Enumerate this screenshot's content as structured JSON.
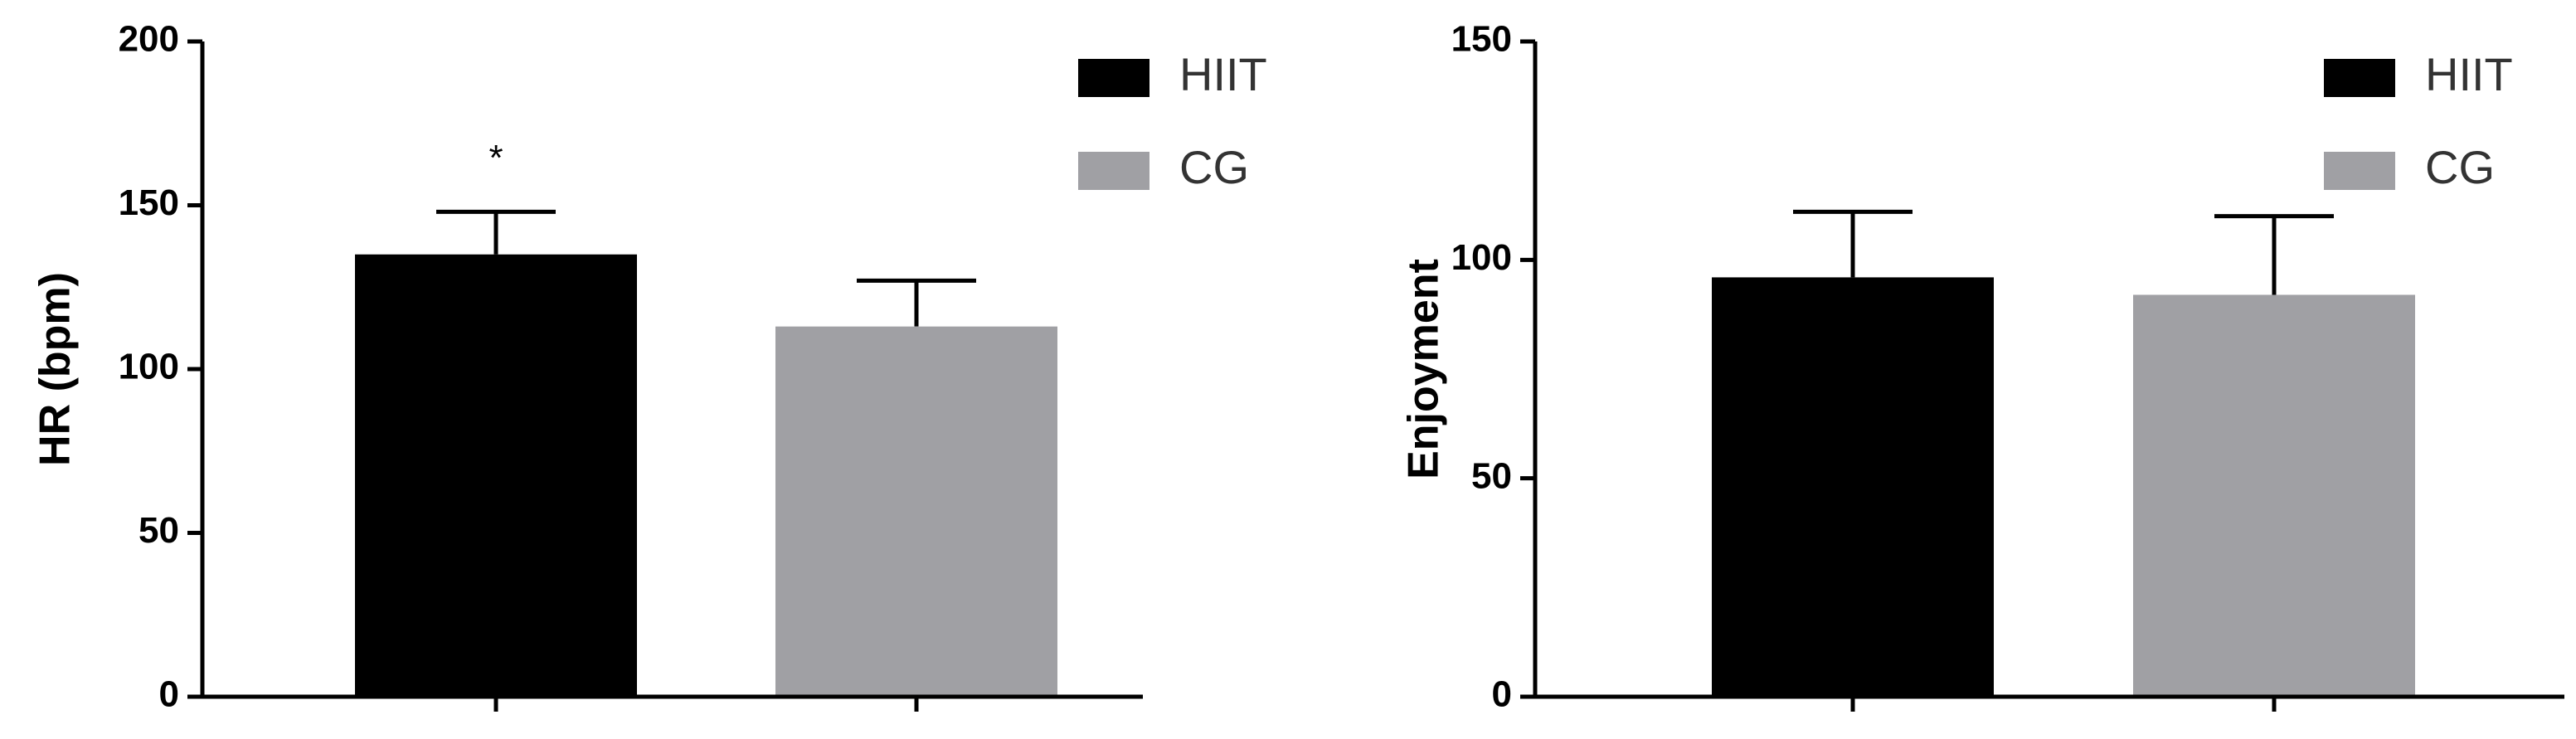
{
  "chart_data": [
    {
      "type": "bar",
      "y_label": "HR (bpm)",
      "categories": [
        null,
        null
      ],
      "series": [
        {
          "name": "HIIT",
          "color": "#000000",
          "values": [
            135,
            null
          ],
          "errors": [
            13,
            null
          ]
        },
        {
          "name": "CG",
          "color": "#a0a0a4",
          "values": [
            null,
            113
          ],
          "errors": [
            null,
            14
          ]
        }
      ],
      "annotation": "*",
      "ylim": [
        0,
        200
      ],
      "yticks": [
        0,
        50,
        100,
        150,
        200
      ],
      "legend": "upper right"
    },
    {
      "type": "bar",
      "y_label": "Enjoyment",
      "categories": [
        null,
        null
      ],
      "series": [
        {
          "name": "HIIT",
          "color": "#000000",
          "values": [
            96,
            null
          ],
          "errors": [
            15,
            null
          ]
        },
        {
          "name": "CG",
          "color": "#a0a0a4",
          "values": [
            null,
            92
          ],
          "errors": [
            null,
            18
          ]
        }
      ],
      "ylim": [
        0,
        150
      ],
      "yticks": [
        0,
        50,
        100,
        150
      ],
      "legend": "upper right"
    }
  ]
}
